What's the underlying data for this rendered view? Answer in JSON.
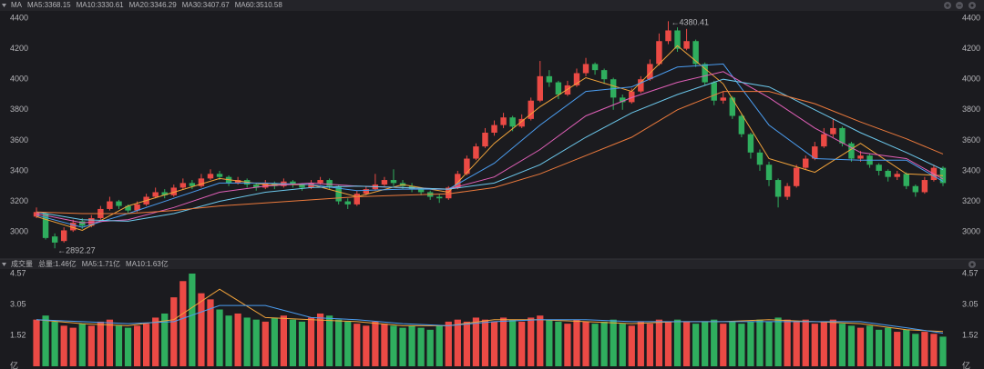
{
  "chart_data": [
    {
      "type": "candlestick",
      "title": "MA",
      "open": [
        3100,
        3120,
        2970,
        2940,
        3010,
        3070,
        3040,
        3090,
        3150,
        3200,
        3170,
        3140,
        3180,
        3230,
        3260,
        3240,
        3290,
        3320,
        3300,
        3350,
        3380,
        3360,
        3320,
        3340,
        3310,
        3290,
        3320,
        3300,
        3330,
        3310,
        3290,
        3320,
        3340,
        3300,
        3200,
        3180,
        3250,
        3280,
        3310,
        3340,
        3320,
        3300,
        3280,
        3260,
        3230,
        3220,
        3290,
        3380,
        3480,
        3560,
        3650,
        3700,
        3750,
        3690,
        3740,
        3860,
        4020,
        3980,
        3900,
        3960,
        4040,
        4100,
        4060,
        4000,
        3880,
        3850,
        3920,
        4000,
        4100,
        4250,
        4320,
        4200,
        4250,
        4100,
        3980,
        3860,
        3880,
        3760,
        3640,
        3520,
        3440,
        3340,
        3230,
        3300,
        3420,
        3480,
        3560,
        3640,
        3680,
        3580,
        3480,
        3500,
        3440,
        3400,
        3360,
        3380,
        3300,
        3260,
        3340,
        3420
      ],
      "high": [
        3160,
        3130,
        2990,
        3030,
        3080,
        3090,
        3110,
        3170,
        3230,
        3210,
        3180,
        3200,
        3250,
        3290,
        3280,
        3310,
        3350,
        3340,
        3380,
        3410,
        3400,
        3370,
        3360,
        3350,
        3320,
        3340,
        3330,
        3350,
        3340,
        3320,
        3340,
        3360,
        3350,
        3310,
        3220,
        3270,
        3300,
        3380,
        3360,
        3410,
        3340,
        3320,
        3290,
        3270,
        3250,
        3300,
        3400,
        3500,
        3580,
        3680,
        3730,
        3780,
        3760,
        3770,
        3880,
        4120,
        4060,
        3990,
        3990,
        4070,
        4140,
        4110,
        4070,
        4010,
        3900,
        3940,
        4020,
        4130,
        4300,
        4380.41,
        4340,
        4330,
        4260,
        4110,
        3990,
        3920,
        3890,
        3770,
        3650,
        3540,
        3460,
        3350,
        3320,
        3440,
        3500,
        3590,
        3680,
        3740,
        3690,
        3590,
        3530,
        3510,
        3450,
        3410,
        3400,
        3390,
        3310,
        3360,
        3440,
        3430
      ],
      "low": [
        3090,
        2950,
        2892.27,
        2930,
        3000,
        3020,
        3030,
        3080,
        3140,
        3150,
        3120,
        3130,
        3170,
        3220,
        3220,
        3230,
        3280,
        3280,
        3290,
        3340,
        3340,
        3300,
        3310,
        3290,
        3270,
        3280,
        3280,
        3290,
        3290,
        3270,
        3280,
        3310,
        3280,
        3180,
        3150,
        3170,
        3240,
        3270,
        3300,
        3300,
        3280,
        3260,
        3240,
        3210,
        3190,
        3210,
        3280,
        3370,
        3470,
        3550,
        3630,
        3680,
        3660,
        3680,
        3730,
        3850,
        3950,
        3870,
        3890,
        3950,
        4020,
        4030,
        3970,
        3800,
        3800,
        3840,
        3910,
        3990,
        4090,
        4230,
        4180,
        4190,
        4080,
        3960,
        3830,
        3840,
        3740,
        3620,
        3480,
        3400,
        3300,
        3160,
        3210,
        3290,
        3410,
        3470,
        3550,
        3620,
        3560,
        3460,
        3460,
        3420,
        3370,
        3330,
        3340,
        3280,
        3230,
        3250,
        3330,
        3300
      ],
      "close": [
        3130,
        2960,
        2930,
        3010,
        3060,
        3040,
        3090,
        3150,
        3200,
        3170,
        3140,
        3180,
        3230,
        3260,
        3240,
        3290,
        3320,
        3300,
        3350,
        3380,
        3360,
        3320,
        3340,
        3310,
        3290,
        3320,
        3300,
        3330,
        3310,
        3290,
        3320,
        3340,
        3300,
        3200,
        3180,
        3250,
        3280,
        3310,
        3340,
        3320,
        3300,
        3280,
        3260,
        3230,
        3220,
        3290,
        3380,
        3480,
        3560,
        3650,
        3700,
        3750,
        3690,
        3740,
        3860,
        4020,
        3980,
        3900,
        3960,
        4040,
        4100,
        4060,
        4000,
        3880,
        3850,
        3920,
        4000,
        4100,
        4250,
        4320,
        4200,
        4250,
        4100,
        3980,
        3860,
        3880,
        3760,
        3640,
        3520,
        3440,
        3340,
        3230,
        3300,
        3420,
        3480,
        3560,
        3640,
        3680,
        3580,
        3480,
        3500,
        3440,
        3400,
        3360,
        3380,
        3300,
        3260,
        3340,
        3420,
        3320
      ],
      "up_color": "#eb4a45",
      "down_color": "#2fae5e",
      "ylim": [
        2840,
        4436
      ],
      "yticks": [
        3000,
        3200,
        3400,
        3600,
        3800,
        4000,
        4200,
        4400
      ],
      "grid": false,
      "annotations": [
        "←4380.41",
        "←2892.27"
      ],
      "ma_x": [
        0,
        5,
        10,
        15,
        20,
        25,
        30,
        35,
        40,
        45,
        50,
        55,
        60,
        65,
        70,
        75,
        80,
        85,
        90,
        95,
        99
      ],
      "series": [
        {
          "name": "MA5:3368.15",
          "color": "#f3a43b",
          "values": [
            3100,
            3010,
            3170,
            3260,
            3350,
            3310,
            3310,
            3230,
            3310,
            3260,
            3580,
            3820,
            4010,
            3920,
            4220,
            3970,
            3480,
            3390,
            3580,
            3380,
            3368.15
          ]
        },
        {
          "name": "MA10:3330.61",
          "color": "#4b9df0",
          "values": [
            3110,
            3030,
            3120,
            3220,
            3320,
            3320,
            3310,
            3270,
            3280,
            3280,
            3450,
            3700,
            3920,
            3950,
            4080,
            4100,
            3700,
            3480,
            3470,
            3470,
            3330.61
          ]
        },
        {
          "name": "MA20:3346.29",
          "color": "#e160b8",
          "values": [
            3120,
            3060,
            3080,
            3160,
            3260,
            3300,
            3320,
            3300,
            3290,
            3280,
            3360,
            3540,
            3760,
            3880,
            3980,
            4050,
            3880,
            3680,
            3520,
            3480,
            3346.29
          ]
        },
        {
          "name": "MA30:3407.67",
          "color": "#6cc8ec",
          "values": [
            3130,
            3080,
            3070,
            3120,
            3200,
            3260,
            3290,
            3300,
            3290,
            3280,
            3320,
            3440,
            3620,
            3780,
            3900,
            4000,
            3950,
            3800,
            3650,
            3520,
            3407.67
          ]
        },
        {
          "name": "MA60:3510.58",
          "color": "#ec7a3c",
          "values": [
            3130,
            3120,
            3120,
            3140,
            3170,
            3190,
            3210,
            3230,
            3240,
            3250,
            3290,
            3380,
            3500,
            3620,
            3800,
            3920,
            3920,
            3840,
            3720,
            3610,
            3510.58
          ]
        }
      ]
    },
    {
      "type": "bar",
      "title": "成交量",
      "subtitle": "总量:1.46亿",
      "values": [
        2.3,
        2.5,
        2.2,
        2.0,
        1.9,
        2.1,
        2.0,
        2.2,
        2.3,
        2.0,
        1.9,
        2.0,
        2.1,
        2.4,
        2.6,
        3.4,
        4.2,
        4.57,
        3.6,
        3.3,
        2.8,
        2.5,
        2.6,
        2.4,
        2.3,
        2.2,
        2.4,
        2.5,
        2.3,
        2.2,
        2.4,
        2.6,
        2.5,
        2.3,
        2.2,
        2.1,
        2.0,
        2.2,
        2.1,
        2.0,
        1.9,
        2.0,
        1.9,
        1.8,
        2.0,
        2.2,
        2.3,
        2.2,
        2.4,
        2.3,
        2.2,
        2.4,
        2.3,
        2.2,
        2.4,
        2.5,
        2.3,
        2.2,
        2.1,
        2.3,
        2.2,
        2.1,
        2.2,
        2.3,
        2.1,
        2.0,
        2.2,
        2.1,
        2.3,
        2.2,
        2.3,
        2.2,
        2.1,
        2.2,
        2.3,
        2.1,
        2.2,
        2.1,
        2.2,
        2.3,
        2.2,
        2.4,
        2.3,
        2.2,
        2.3,
        2.1,
        2.2,
        2.3,
        2.1,
        2.0,
        1.9,
        2.0,
        1.8,
        1.9,
        1.7,
        1.8,
        1.6,
        1.7,
        1.6,
        1.46
      ],
      "ylim": [
        0,
        4.75
      ],
      "yticks": [
        {
          "value": 0,
          "label": "亿"
        },
        1.52,
        3.05,
        4.57
      ],
      "grid": false,
      "ma_x": [
        0,
        5,
        10,
        15,
        20,
        25,
        30,
        35,
        40,
        45,
        50,
        55,
        60,
        65,
        70,
        75,
        80,
        85,
        90,
        95,
        99
      ],
      "series": [
        {
          "name": "MA5:1.71亿",
          "color": "#f3a43b",
          "values": [
            2.3,
            2.1,
            2.0,
            2.3,
            3.8,
            2.4,
            2.3,
            2.2,
            2.0,
            2.0,
            2.3,
            2.3,
            2.2,
            2.1,
            2.2,
            2.2,
            2.3,
            2.2,
            2.1,
            1.8,
            1.71
          ]
        },
        {
          "name": "MA10:1.63亿",
          "color": "#4b9df0",
          "values": [
            2.3,
            2.2,
            2.1,
            2.2,
            3.0,
            3.0,
            2.4,
            2.3,
            2.1,
            2.0,
            2.2,
            2.3,
            2.3,
            2.2,
            2.2,
            2.2,
            2.2,
            2.2,
            2.2,
            1.9,
            1.63
          ]
        }
      ]
    }
  ]
}
